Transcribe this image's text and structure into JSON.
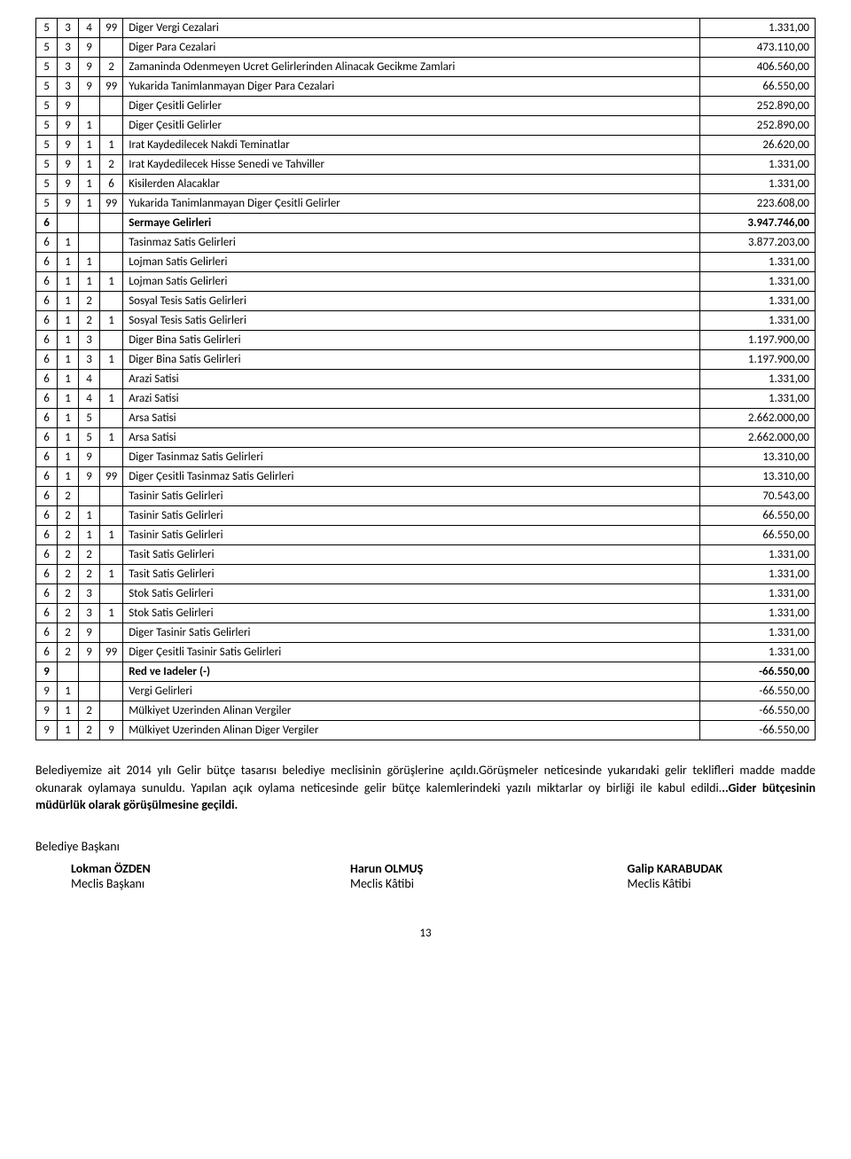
{
  "table": {
    "code_col_count": 4,
    "rows": [
      {
        "c": [
          "5",
          "3",
          "4",
          "99"
        ],
        "desc": "Diger Vergi Cezalari",
        "amount": "1.331,00",
        "bold": false
      },
      {
        "c": [
          "5",
          "3",
          "9",
          "",
          ""
        ],
        "desc": "Diger Para Cezalari",
        "amount": "473.110,00",
        "bold": false
      },
      {
        "c": [
          "5",
          "3",
          "9",
          "2"
        ],
        "desc": "Zamaninda Odenmeyen Ucret Gelirlerinden Alinacak Gecikme Zamlari",
        "amount": "406.560,00",
        "bold": false
      },
      {
        "c": [
          "5",
          "3",
          "9",
          "99"
        ],
        "desc": "Yukarida Tanimlanmayan Diger Para Cezalari",
        "amount": "66.550,00",
        "bold": false
      },
      {
        "c": [
          "5",
          "9",
          "",
          "",
          ""
        ],
        "desc": "Diger Çesitli Gelirler",
        "amount": "252.890,00",
        "bold": false
      },
      {
        "c": [
          "5",
          "9",
          "1",
          "",
          ""
        ],
        "desc": "Diger Çesitli Gelirler",
        "amount": "252.890,00",
        "bold": false
      },
      {
        "c": [
          "5",
          "9",
          "1",
          "1"
        ],
        "desc": "Irat Kaydedilecek Nakdi Teminatlar",
        "amount": "26.620,00",
        "bold": false
      },
      {
        "c": [
          "5",
          "9",
          "1",
          "2"
        ],
        "desc": "Irat Kaydedilecek Hisse Senedi ve Tahviller",
        "amount": "1.331,00",
        "bold": false
      },
      {
        "c": [
          "5",
          "9",
          "1",
          "6"
        ],
        "desc": "Kisilerden Alacaklar",
        "amount": "1.331,00",
        "bold": false
      },
      {
        "c": [
          "5",
          "9",
          "1",
          "99"
        ],
        "desc": "Yukarida Tanimlanmayan Diger Çesitli Gelirler",
        "amount": "223.608,00",
        "bold": false
      },
      {
        "c": [
          "6",
          "",
          "",
          "",
          ""
        ],
        "desc": "Sermaye Gelirleri",
        "amount": "3.947.746,00",
        "bold": true
      },
      {
        "c": [
          "6",
          "1",
          "",
          "",
          ""
        ],
        "desc": "Tasinmaz Satis Gelirleri",
        "amount": "3.877.203,00",
        "bold": false
      },
      {
        "c": [
          "6",
          "1",
          "1",
          "",
          ""
        ],
        "desc": "Lojman Satis Gelirleri",
        "amount": "1.331,00",
        "bold": false
      },
      {
        "c": [
          "6",
          "1",
          "1",
          "1"
        ],
        "desc": "Lojman Satis Gelirleri",
        "amount": "1.331,00",
        "bold": false
      },
      {
        "c": [
          "6",
          "1",
          "2",
          "",
          ""
        ],
        "desc": "Sosyal Tesis Satis Gelirleri",
        "amount": "1.331,00",
        "bold": false
      },
      {
        "c": [
          "6",
          "1",
          "2",
          "1"
        ],
        "desc": "Sosyal Tesis Satis Gelirleri",
        "amount": "1.331,00",
        "bold": false
      },
      {
        "c": [
          "6",
          "1",
          "3",
          "",
          ""
        ],
        "desc": "Diger Bina Satis Gelirleri",
        "amount": "1.197.900,00",
        "bold": false
      },
      {
        "c": [
          "6",
          "1",
          "3",
          "1"
        ],
        "desc": "Diger Bina Satis Gelirleri",
        "amount": "1.197.900,00",
        "bold": false
      },
      {
        "c": [
          "6",
          "1",
          "4",
          "",
          ""
        ],
        "desc": "Arazi Satisi",
        "amount": "1.331,00",
        "bold": false
      },
      {
        "c": [
          "6",
          "1",
          "4",
          "1"
        ],
        "desc": "Arazi Satisi",
        "amount": "1.331,00",
        "bold": false
      },
      {
        "c": [
          "6",
          "1",
          "5",
          "",
          ""
        ],
        "desc": "Arsa Satisi",
        "amount": "2.662.000,00",
        "bold": false
      },
      {
        "c": [
          "6",
          "1",
          "5",
          "1"
        ],
        "desc": "Arsa Satisi",
        "amount": "2.662.000,00",
        "bold": false
      },
      {
        "c": [
          "6",
          "1",
          "9",
          "",
          ""
        ],
        "desc": "Diger Tasinmaz Satis Gelirleri",
        "amount": "13.310,00",
        "bold": false
      },
      {
        "c": [
          "6",
          "1",
          "9",
          "99"
        ],
        "desc": "Diger Çesitli Tasinmaz Satis Gelirleri",
        "amount": "13.310,00",
        "bold": false
      },
      {
        "c": [
          "6",
          "2",
          "",
          "",
          ""
        ],
        "desc": "Tasinir Satis Gelirleri",
        "amount": "70.543,00",
        "bold": false
      },
      {
        "c": [
          "6",
          "2",
          "1",
          "",
          ""
        ],
        "desc": "Tasinir Satis Gelirleri",
        "amount": "66.550,00",
        "bold": false
      },
      {
        "c": [
          "6",
          "2",
          "1",
          "1"
        ],
        "desc": "Tasinir Satis Gelirleri",
        "amount": "66.550,00",
        "bold": false
      },
      {
        "c": [
          "6",
          "2",
          "2",
          "",
          ""
        ],
        "desc": "Tasit Satis Gelirleri",
        "amount": "1.331,00",
        "bold": false
      },
      {
        "c": [
          "6",
          "2",
          "2",
          "1"
        ],
        "desc": "Tasit Satis Gelirleri",
        "amount": "1.331,00",
        "bold": false
      },
      {
        "c": [
          "6",
          "2",
          "3",
          "",
          ""
        ],
        "desc": "Stok Satis Gelirleri",
        "amount": "1.331,00",
        "bold": false
      },
      {
        "c": [
          "6",
          "2",
          "3",
          "1"
        ],
        "desc": "Stok Satis Gelirleri",
        "amount": "1.331,00",
        "bold": false
      },
      {
        "c": [
          "6",
          "2",
          "9",
          "",
          ""
        ],
        "desc": "Diger Tasinir Satis Gelirleri",
        "amount": "1.331,00",
        "bold": false
      },
      {
        "c": [
          "6",
          "2",
          "9",
          "99"
        ],
        "desc": "Diger Çesitli Tasinir Satis Gelirleri",
        "amount": "1.331,00",
        "bold": false
      },
      {
        "c": [
          "9",
          "",
          "",
          "",
          ""
        ],
        "desc": "Red ve Iadeler (-)",
        "amount": "-66.550,00",
        "bold": true
      },
      {
        "c": [
          "9",
          "1",
          "",
          "",
          ""
        ],
        "desc": "Vergi Gelirleri",
        "amount": "-66.550,00",
        "bold": false
      },
      {
        "c": [
          "9",
          "1",
          "2",
          "",
          ""
        ],
        "desc": "Mülkiyet Uzerinden Alinan Vergiler",
        "amount": "-66.550,00",
        "bold": false
      },
      {
        "c": [
          "9",
          "1",
          "2",
          "9"
        ],
        "desc": "Mülkiyet Uzerinden Alinan Diger Vergiler",
        "amount": "-66.550,00",
        "bold": false
      }
    ]
  },
  "paragraph": {
    "text_before_bold": "Belediyemize ait 2014 yılı Gelir bütçe tasarısı belediye meclisinin görüşlerine açıldı.Görüşmeler neticesinde yukarıdaki gelir teklifleri madde madde okunarak oylamaya sunuldu. Yapılan açık oylama neticesinde gelir bütçe kalemlerindeki yazılı miktarlar oy birliği ile kabul edildi.",
    "tail": "..Gider bütçesinin müdürlük olarak görüşülmesine geçildi."
  },
  "signatures": {
    "heading": "Belediye Başkanı",
    "cols": [
      {
        "name": "Lokman ÖZDEN",
        "title": "Meclis Başkanı"
      },
      {
        "name": "Harun OLMUŞ",
        "title": "Meclis Kâtibi"
      },
      {
        "name": "Galip KARABUDAK",
        "title": "Meclis Kâtibi"
      }
    ]
  },
  "page_number": "13"
}
